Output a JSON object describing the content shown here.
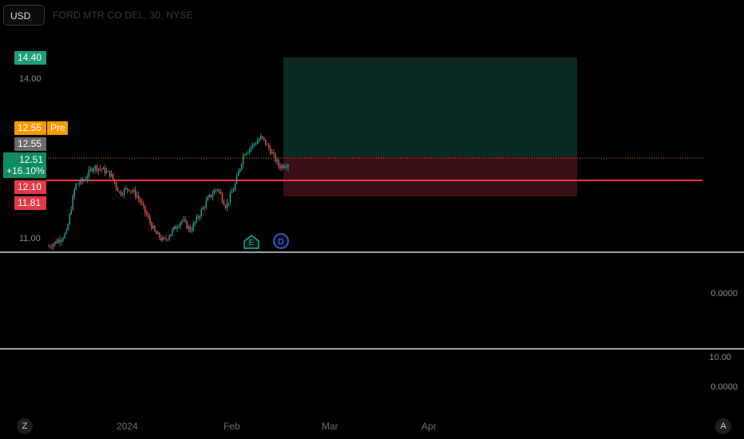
{
  "toolbar": {
    "currency": "USD"
  },
  "header": {
    "symbol_title": "FORD MTR CO DEL, 30, NYSE"
  },
  "price_tags": {
    "target": "14.40",
    "premarket_price": "12.55",
    "premarket_label": "Pre",
    "last_close": "12.55",
    "current_price": "12.51",
    "current_change": "+16.10%",
    "stop_line": "12.10",
    "stop": "11.81"
  },
  "price_axis": {
    "tick_14": "14.00",
    "tick_11": "11.00"
  },
  "indicator_pane_1": {
    "value": "0.0000"
  },
  "indicator_pane_2": {
    "upper": "10.00",
    "lower": "0.0000"
  },
  "events": {
    "earnings": "E",
    "dividend": "D"
  },
  "time_axis": {
    "labels": [
      "2024",
      "Feb",
      "Mar",
      "Apr"
    ]
  },
  "controls": {
    "left": "Z",
    "right": "A"
  },
  "colors": {
    "up": "#26a69a",
    "down": "#ef5350",
    "stop": "#f23645",
    "target_zone": "#0a2b24",
    "stop_zone": "#3a0f16",
    "premarket": "#ff9800"
  },
  "chart_data": {
    "type": "candlestick",
    "title": "FORD MTR CO DEL, 30, NYSE",
    "ylim": [
      10.9,
      14.5
    ],
    "x": [
      "2024",
      "Feb",
      "Mar",
      "Apr"
    ],
    "close_path": [
      {
        "x": "Dec 26",
        "y": 10.95
      },
      {
        "x": "Dec 28",
        "y": 11.05
      },
      {
        "x": "Dec 29",
        "y": 11.2
      },
      {
        "x": "Jan 02",
        "y": 12.1
      },
      {
        "x": "Jan 05",
        "y": 12.2
      },
      {
        "x": "Jan 09",
        "y": 12.45
      },
      {
        "x": "Jan 11",
        "y": 12.4
      },
      {
        "x": "Jan 12",
        "y": 12.3
      },
      {
        "x": "Jan 16",
        "y": 11.95
      },
      {
        "x": "Jan 18",
        "y": 12.05
      },
      {
        "x": "Jan 19",
        "y": 11.9
      },
      {
        "x": "Jan 22",
        "y": 11.55
      },
      {
        "x": "Jan 24",
        "y": 11.2
      },
      {
        "x": "Jan 25",
        "y": 11.05
      },
      {
        "x": "Jan 26",
        "y": 11.25
      },
      {
        "x": "Jan 29",
        "y": 11.45
      },
      {
        "x": "Jan 30",
        "y": 11.25
      },
      {
        "x": "Jan 31",
        "y": 11.55
      },
      {
        "x": "Feb 01",
        "y": 11.85
      },
      {
        "x": "Feb 02",
        "y": 12.05
      },
      {
        "x": "Feb 05",
        "y": 11.7
      },
      {
        "x": "Feb 06",
        "y": 12.1
      },
      {
        "x": "Feb 07",
        "y": 12.7
      },
      {
        "x": "Feb 08",
        "y": 12.85
      },
      {
        "x": "Feb 09",
        "y": 13.0
      },
      {
        "x": "Feb 12",
        "y": 12.75
      },
      {
        "x": "Feb 13",
        "y": 12.45
      },
      {
        "x": "Feb 14",
        "y": 12.51
      }
    ],
    "levels": {
      "target": 14.4,
      "premarket": 12.55,
      "last": 12.51,
      "stop_line": 12.1,
      "stop": 11.81
    }
  }
}
